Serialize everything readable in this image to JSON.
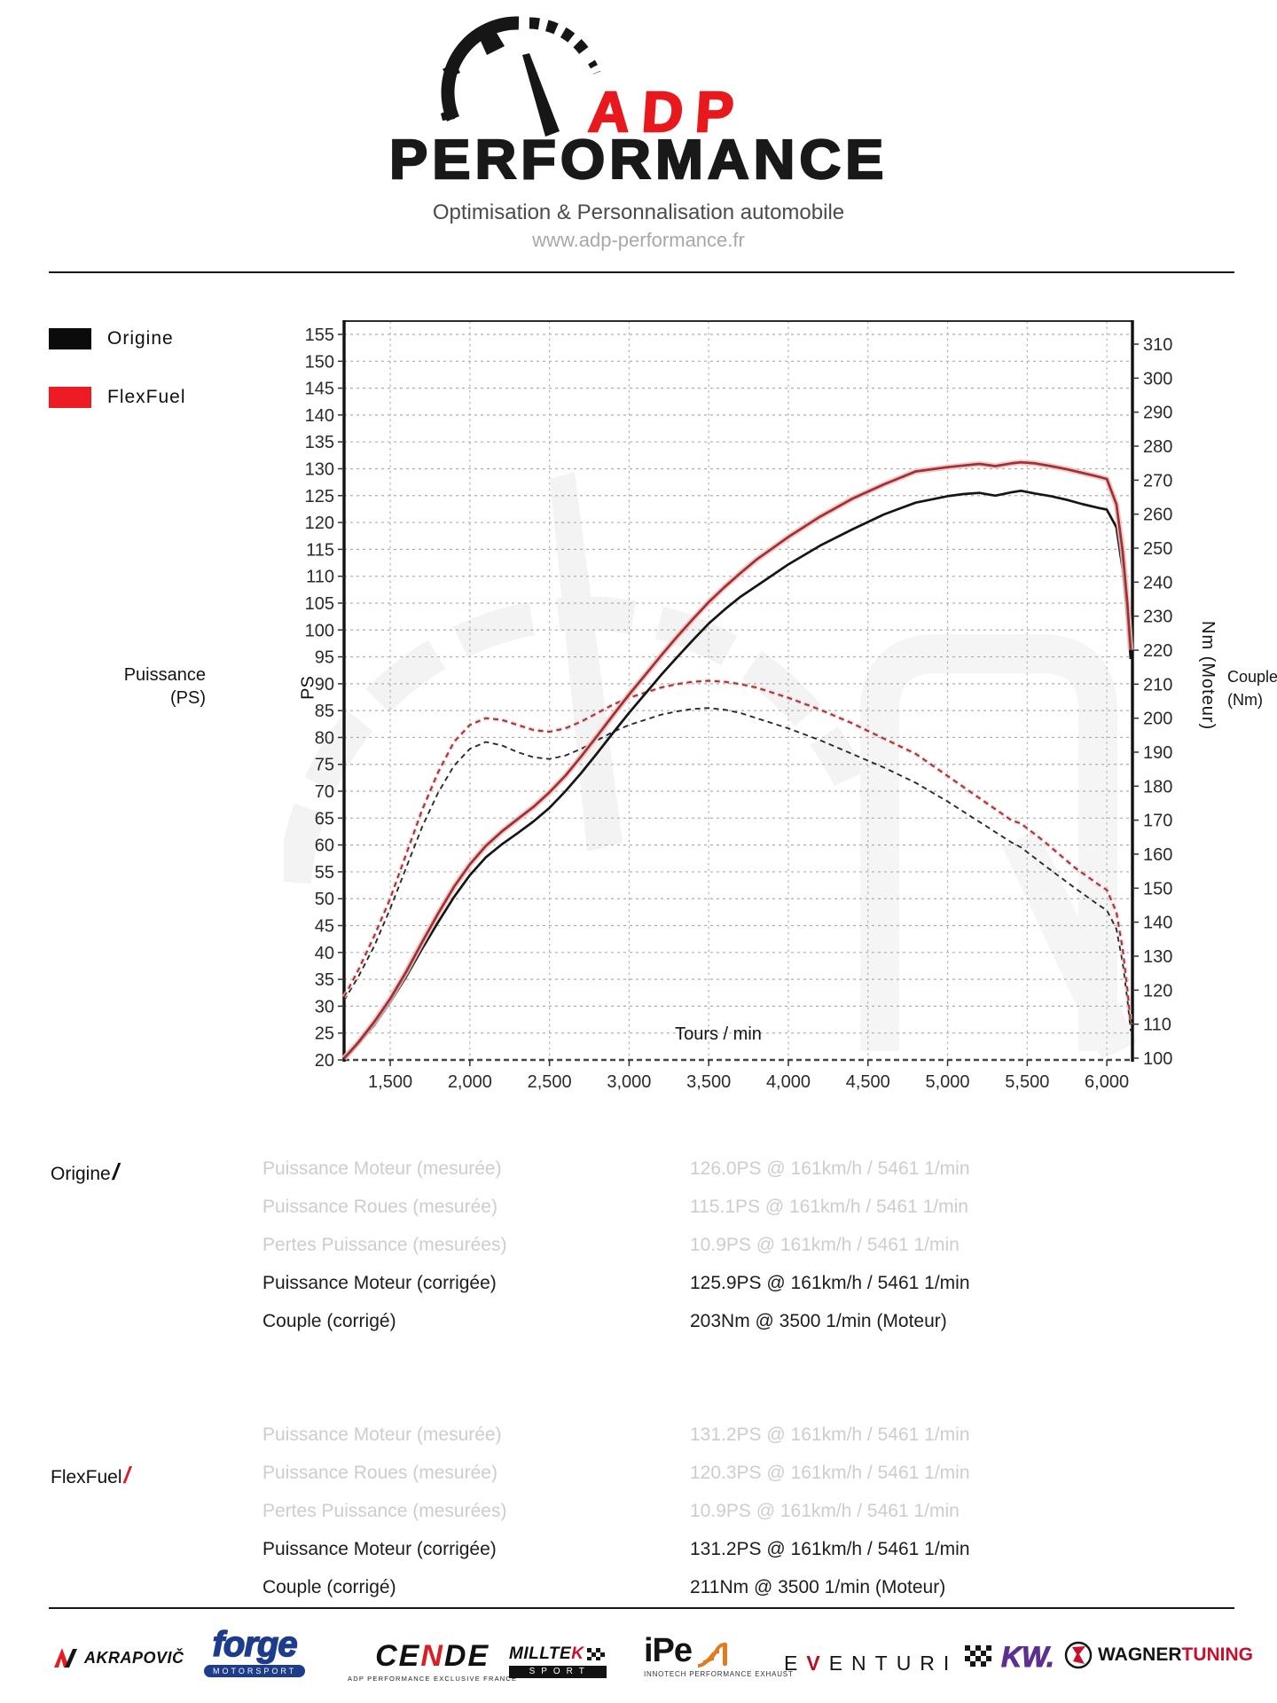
{
  "header": {
    "brand_top": "ADP",
    "brand_bottom": "PERFORMANCE",
    "tagline": "Optimisation & Personnalisation automobile",
    "url": "www.adp-performance.fr"
  },
  "legend": [
    {
      "label": "Origine",
      "color": "#0b0b0b"
    },
    {
      "label": "FlexFuel",
      "color": "#ed1c24"
    }
  ],
  "colors": {
    "accent_red": "#e8191d",
    "legend_red": "#ed1c24",
    "curve_red": "#9e3132",
    "curve_red_halo": "#f1c2c2",
    "curve_black": "#151515",
    "muted_text": "#cdcdcd",
    "grid_gray": "#b0b0b0",
    "forge_blue": "#1e3c8c",
    "kw_purple": "#5d2f8e",
    "wagner_red": "#c8102e",
    "ipe_orange": "#e07b1f",
    "eventuri_red": "#b11226"
  },
  "chart_data": {
    "type": "line",
    "xlabel": "Tours / min",
    "ylabel_left_inner": "PS",
    "ylabel_left_outer_1": "Puissance",
    "ylabel_left_outer_2": "(PS)",
    "ylabel_right_inner": "Nm (Moteur)",
    "ylabel_right_outer_1": "Couple",
    "ylabel_right_outer_2": "(Nm)",
    "x_range": [
      1210,
      6161
    ],
    "ps_axis_range": [
      20,
      155
    ],
    "nm_axis_range": [
      100,
      310
    ],
    "grid": true,
    "legend_position": "outside-left",
    "x_ticks": [
      1500,
      2000,
      2500,
      3000,
      3500,
      4000,
      4500,
      5000,
      5500,
      6000
    ],
    "x_tick_labels": [
      "1,500",
      "2,000",
      "2,500",
      "3,000",
      "3,500",
      "4,000",
      "4,500",
      "5,000",
      "5,500",
      "6,000"
    ],
    "ps_ticks": [
      155,
      150,
      145,
      140,
      135,
      130,
      125,
      120,
      115,
      110,
      105,
      100,
      95,
      90,
      85,
      80,
      75,
      70,
      65,
      60,
      55,
      50,
      45,
      40,
      35,
      30,
      25,
      20
    ],
    "nm_ticks": [
      310,
      300,
      290,
      280,
      270,
      260,
      250,
      240,
      230,
      220,
      210,
      200,
      190,
      180,
      170,
      160,
      150,
      140,
      130,
      120,
      110,
      100
    ],
    "series": [
      {
        "name": "Origine Puissance (PS)",
        "axis": "ps",
        "style": "solid",
        "color": "#151515",
        "points": [
          [
            1210,
            20.1
          ],
          [
            1300,
            23.0
          ],
          [
            1400,
            26.5
          ],
          [
            1500,
            30.8
          ],
          [
            1600,
            35.5
          ],
          [
            1700,
            40.7
          ],
          [
            1800,
            45.6
          ],
          [
            1900,
            50.3
          ],
          [
            2000,
            54.4
          ],
          [
            2100,
            57.7
          ],
          [
            2200,
            60.1
          ],
          [
            2300,
            62.2
          ],
          [
            2400,
            64.4
          ],
          [
            2500,
            66.9
          ],
          [
            2600,
            70.0
          ],
          [
            2700,
            73.4
          ],
          [
            2800,
            77.1
          ],
          [
            2900,
            80.9
          ],
          [
            3000,
            84.6
          ],
          [
            3100,
            88.1
          ],
          [
            3200,
            91.6
          ],
          [
            3300,
            94.9
          ],
          [
            3400,
            98.1
          ],
          [
            3500,
            101.2
          ],
          [
            3600,
            103.8
          ],
          [
            3700,
            106.2
          ],
          [
            3800,
            108.2
          ],
          [
            3900,
            110.2
          ],
          [
            4000,
            112.2
          ],
          [
            4200,
            115.7
          ],
          [
            4400,
            118.7
          ],
          [
            4600,
            121.5
          ],
          [
            4800,
            123.7
          ],
          [
            5000,
            124.9
          ],
          [
            5100,
            125.3
          ],
          [
            5200,
            125.5
          ],
          [
            5300,
            125.0
          ],
          [
            5400,
            125.6
          ],
          [
            5461,
            125.9
          ],
          [
            5550,
            125.4
          ],
          [
            5650,
            124.9
          ],
          [
            5750,
            124.2
          ],
          [
            5850,
            123.4
          ],
          [
            5950,
            122.7
          ],
          [
            6000,
            122.4
          ],
          [
            6060,
            119.1
          ],
          [
            6100,
            111.2
          ],
          [
            6130,
            102.1
          ],
          [
            6150,
            94.6
          ]
        ]
      },
      {
        "name": "FlexFuel Puissance (PS)",
        "axis": "ps",
        "style": "solid",
        "color": "#9e3132",
        "halo": "#f1c2c2",
        "points": [
          [
            1210,
            20.3
          ],
          [
            1300,
            23.3
          ],
          [
            1400,
            27.1
          ],
          [
            1500,
            31.4
          ],
          [
            1600,
            36.4
          ],
          [
            1700,
            41.9
          ],
          [
            1800,
            47.2
          ],
          [
            1900,
            52.2
          ],
          [
            2000,
            56.4
          ],
          [
            2100,
            59.8
          ],
          [
            2200,
            62.5
          ],
          [
            2300,
            64.8
          ],
          [
            2400,
            67.1
          ],
          [
            2500,
            69.8
          ],
          [
            2600,
            72.9
          ],
          [
            2700,
            76.5
          ],
          [
            2800,
            80.3
          ],
          [
            2900,
            84.2
          ],
          [
            3000,
            88.0
          ],
          [
            3100,
            91.6
          ],
          [
            3200,
            95.2
          ],
          [
            3300,
            98.7
          ],
          [
            3400,
            102.0
          ],
          [
            3500,
            105.2
          ],
          [
            3600,
            108.0
          ],
          [
            3700,
            110.6
          ],
          [
            3800,
            113.1
          ],
          [
            3900,
            115.2
          ],
          [
            4000,
            117.3
          ],
          [
            4200,
            121.1
          ],
          [
            4400,
            124.4
          ],
          [
            4600,
            127.1
          ],
          [
            4800,
            129.5
          ],
          [
            5000,
            130.3
          ],
          [
            5100,
            130.6
          ],
          [
            5200,
            130.9
          ],
          [
            5300,
            130.5
          ],
          [
            5400,
            131.0
          ],
          [
            5461,
            131.2
          ],
          [
            5550,
            131.0
          ],
          [
            5650,
            130.5
          ],
          [
            5750,
            129.9
          ],
          [
            5850,
            129.2
          ],
          [
            5950,
            128.5
          ],
          [
            6000,
            128.1
          ],
          [
            6060,
            123.4
          ],
          [
            6100,
            114.6
          ],
          [
            6130,
            104.7
          ],
          [
            6150,
            96.3
          ]
        ]
      },
      {
        "name": "Origine Couple (Nm)",
        "axis": "nm",
        "style": "dashed",
        "color": "#2b2b2b",
        "points": [
          [
            1210,
            117
          ],
          [
            1300,
            124
          ],
          [
            1400,
            133
          ],
          [
            1500,
            144
          ],
          [
            1600,
            156
          ],
          [
            1700,
            168
          ],
          [
            1800,
            178
          ],
          [
            1900,
            186
          ],
          [
            2000,
            191
          ],
          [
            2100,
            193
          ],
          [
            2200,
            192
          ],
          [
            2300,
            190
          ],
          [
            2400,
            188.5
          ],
          [
            2500,
            188
          ],
          [
            2600,
            189
          ],
          [
            2700,
            191
          ],
          [
            2800,
            193.5
          ],
          [
            2900,
            196
          ],
          [
            3000,
            198
          ],
          [
            3100,
            199.5
          ],
          [
            3200,
            201
          ],
          [
            3300,
            202
          ],
          [
            3400,
            202.7
          ],
          [
            3500,
            203
          ],
          [
            3600,
            202.5
          ],
          [
            3700,
            201.5
          ],
          [
            3800,
            200
          ],
          [
            3900,
            198.5
          ],
          [
            4000,
            197
          ],
          [
            4200,
            193.5
          ],
          [
            4400,
            189.5
          ],
          [
            4600,
            185.5
          ],
          [
            4800,
            181
          ],
          [
            5000,
            175.5
          ],
          [
            5200,
            169.5
          ],
          [
            5400,
            163.5
          ],
          [
            5461,
            162
          ],
          [
            5600,
            157
          ],
          [
            5800,
            150
          ],
          [
            5950,
            145
          ],
          [
            6000,
            143.5
          ],
          [
            6060,
            138
          ],
          [
            6100,
            128
          ],
          [
            6130,
            117
          ],
          [
            6150,
            108
          ]
        ]
      },
      {
        "name": "FlexFuel Couple (Nm)",
        "axis": "nm",
        "style": "dashed",
        "color": "#9e3132",
        "halo": "#f1c2c2",
        "points": [
          [
            1210,
            118
          ],
          [
            1300,
            126
          ],
          [
            1400,
            136
          ],
          [
            1500,
            147
          ],
          [
            1600,
            160
          ],
          [
            1700,
            173
          ],
          [
            1800,
            184
          ],
          [
            1900,
            193
          ],
          [
            2000,
            198
          ],
          [
            2100,
            200
          ],
          [
            2200,
            199.5
          ],
          [
            2300,
            198
          ],
          [
            2400,
            196.5
          ],
          [
            2500,
            196
          ],
          [
            2600,
            197
          ],
          [
            2700,
            199
          ],
          [
            2800,
            201.5
          ],
          [
            2900,
            204
          ],
          [
            3000,
            206
          ],
          [
            3100,
            207.5
          ],
          [
            3200,
            209
          ],
          [
            3300,
            210
          ],
          [
            3400,
            210.7
          ],
          [
            3500,
            211
          ],
          [
            3600,
            210.7
          ],
          [
            3700,
            210
          ],
          [
            3800,
            209
          ],
          [
            3900,
            207.5
          ],
          [
            4000,
            206
          ],
          [
            4200,
            202.5
          ],
          [
            4400,
            198.5
          ],
          [
            4600,
            194
          ],
          [
            4800,
            189.5
          ],
          [
            5000,
            183
          ],
          [
            5200,
            176.5
          ],
          [
            5400,
            170
          ],
          [
            5461,
            169
          ],
          [
            5600,
            164
          ],
          [
            5800,
            156
          ],
          [
            5950,
            151
          ],
          [
            6000,
            149.5
          ],
          [
            6060,
            143
          ],
          [
            6100,
            132
          ],
          [
            6130,
            120
          ],
          [
            6150,
            110
          ]
        ]
      }
    ]
  },
  "results": {
    "origine": {
      "title": "Origine",
      "slash": "/",
      "rows": [
        {
          "label": "Puissance Moteur (mesurée)",
          "value": "126.0PS @ 161km/h / 5461 1/min"
        },
        {
          "label": "Puissance Roues (mesurée)",
          "value": "115.1PS @ 161km/h / 5461 1/min"
        },
        {
          "label": "Pertes Puissance (mesurées)",
          "value": "10.9PS @ 161km/h / 5461 1/min"
        },
        {
          "label": "Puissance Moteur (corrigée)",
          "value": "125.9PS @ 161km/h / 5461 1/min"
        },
        {
          "label": "Couple (corrigé)",
          "value": "203Nm @ 3500 1/min (Moteur)"
        }
      ]
    },
    "flexfuel": {
      "title": "FlexFuel",
      "slash": "/",
      "rows": [
        {
          "label": "Puissance Moteur (mesurée)",
          "value": "131.2PS @ 161km/h / 5461 1/min"
        },
        {
          "label": "Puissance Roues (mesurée)",
          "value": "120.3PS @ 161km/h / 5461 1/min"
        },
        {
          "label": "Pertes Puissance (mesurées)",
          "value": "10.9PS @ 161km/h / 5461 1/min"
        },
        {
          "label": "Puissance Moteur (corrigée)",
          "value": "131.2PS @ 161km/h / 5461 1/min"
        },
        {
          "label": "Couple (corrigé)",
          "value": "211Nm @ 3500 1/min (Moteur)"
        }
      ]
    }
  },
  "footer": {
    "partners": [
      {
        "id": "akrapovic",
        "name": "AKRAPOVIČ"
      },
      {
        "id": "forge",
        "name": "forge",
        "sub": "MOTORSPORT"
      },
      {
        "id": "cende",
        "name_pre": "CE",
        "name_mid": "N",
        "name_post": "DE",
        "sub": "ADP PERFORMANCE EXCLUSIVE FRANCE"
      },
      {
        "id": "milltek",
        "name_pre": "MILLTE",
        "name_mid": "K",
        "sub": "SPORT"
      },
      {
        "id": "ipe",
        "name": "iPe",
        "sub": "INNOTECH PERFORMANCE EXHAUST"
      },
      {
        "id": "eventuri",
        "name_pre": "E",
        "name_mid": "V",
        "name_post": "ENTURI"
      },
      {
        "id": "kw",
        "name": "KW."
      },
      {
        "id": "wagner",
        "name_pre": "WAGNER",
        "name_mid": "TUNING"
      }
    ]
  }
}
